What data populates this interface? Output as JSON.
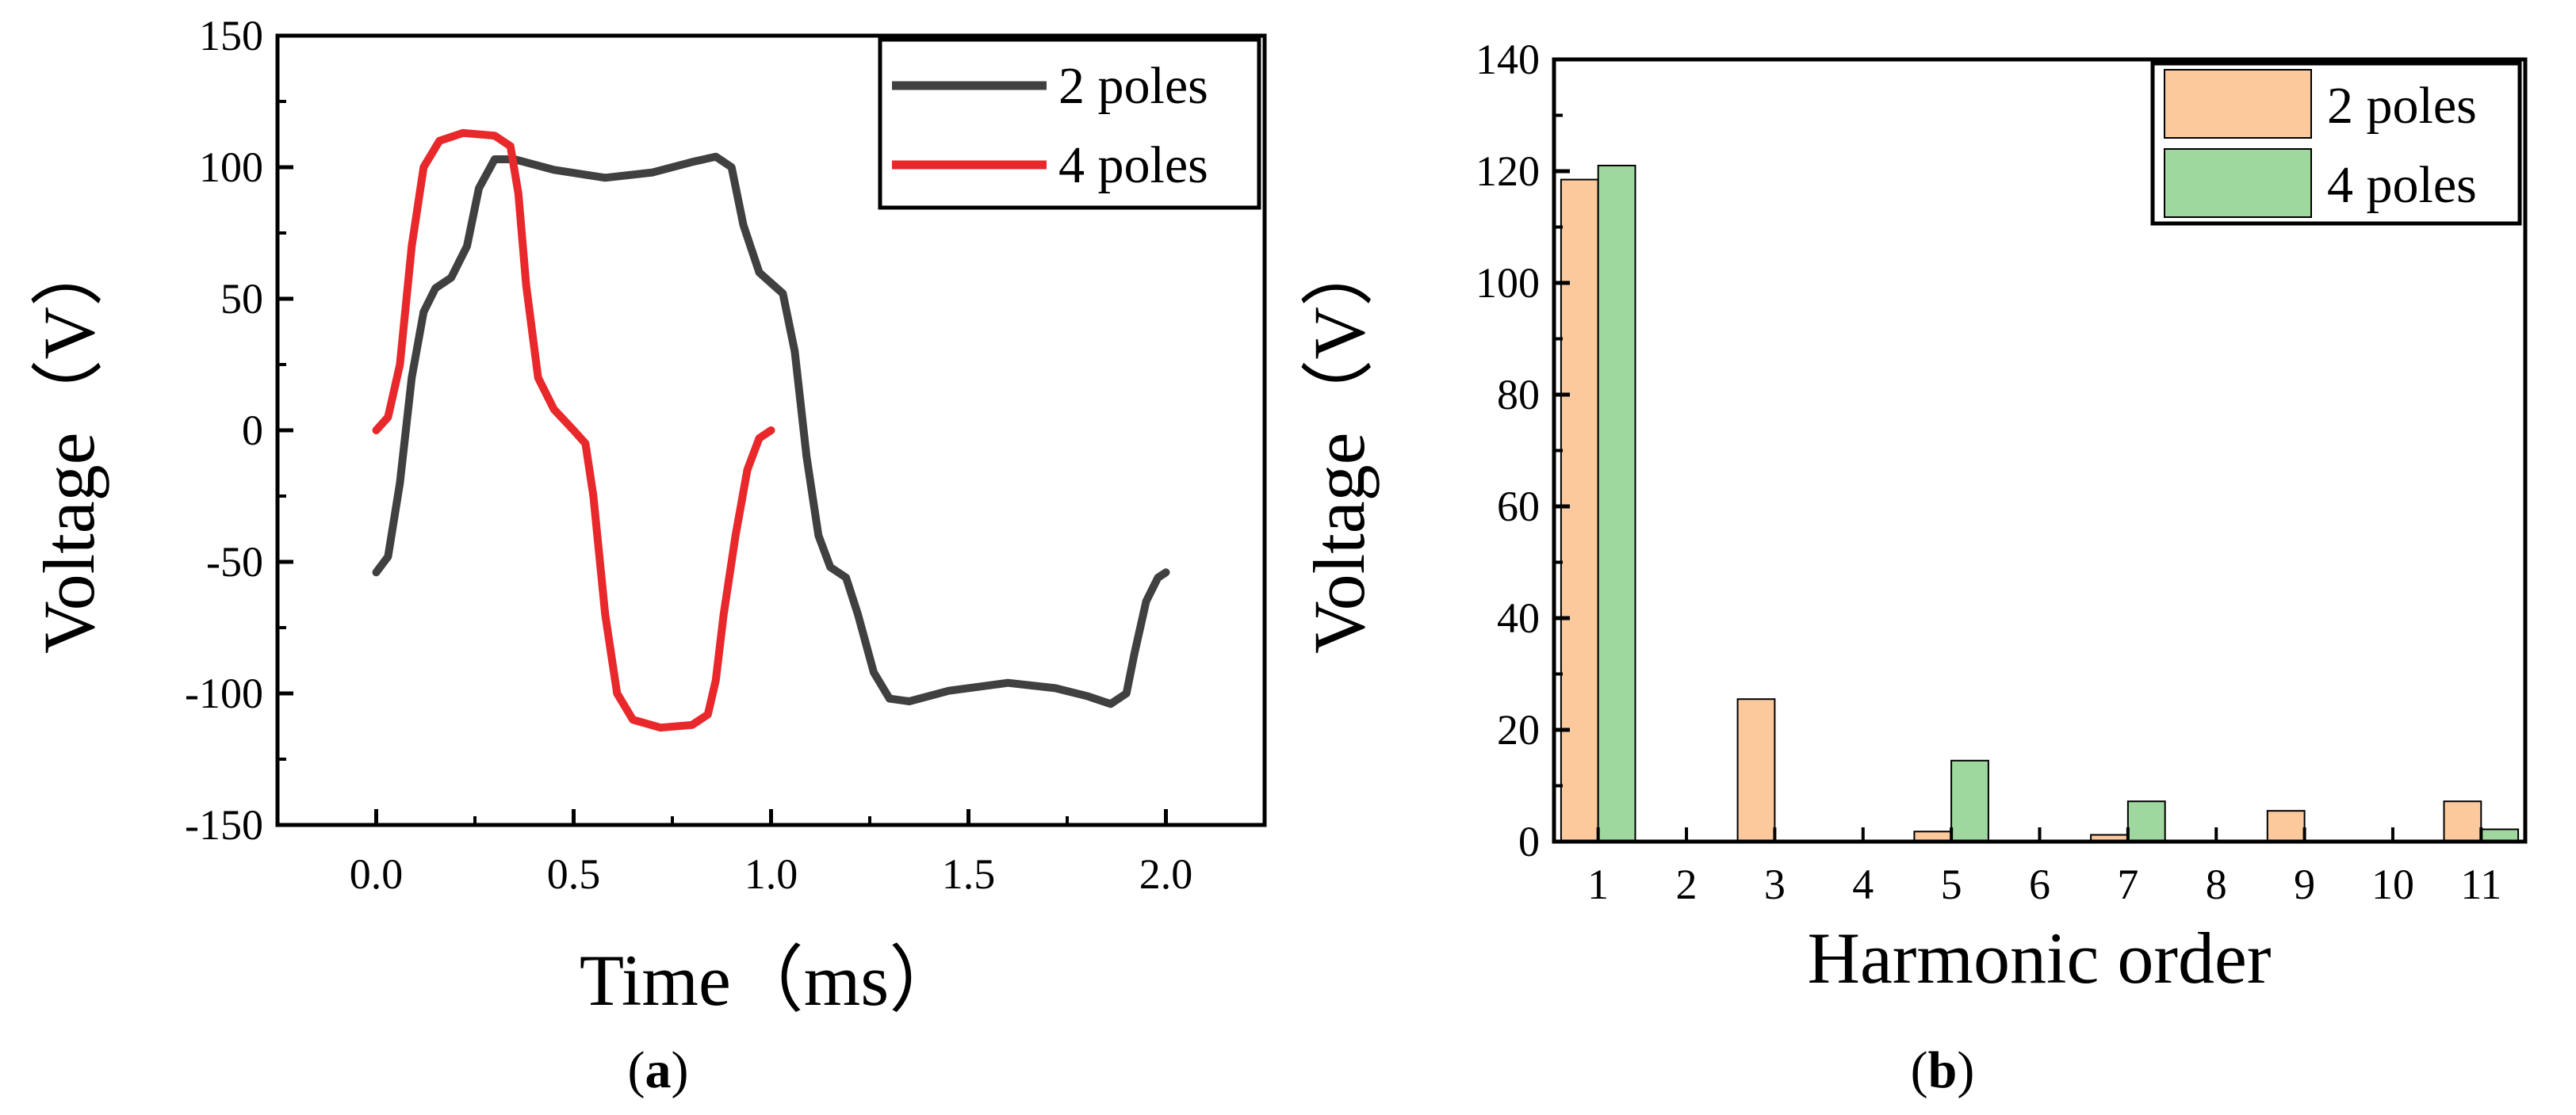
{
  "chart_data": [
    {
      "panel": "a",
      "type": "line",
      "panel_label_prefix": "(",
      "panel_label_letter": "a",
      "panel_label_suffix": ")",
      "xlabel": "Time（ms）",
      "ylabel": "Voltage（V）",
      "xlim": [
        -0.25,
        2.25
      ],
      "ylim": [
        -150,
        150
      ],
      "xticks": [
        "0.0",
        "0.5",
        "1.0",
        "1.5",
        "2.0"
      ],
      "xtick_values": [
        0,
        0.5,
        1.0,
        1.5,
        2.0
      ],
      "yticks": [
        "150",
        "100",
        "50",
        "0",
        "-50",
        "-100",
        "-150"
      ],
      "ytick_values": [
        150,
        100,
        50,
        0,
        -50,
        -100,
        -150
      ],
      "legend_position": "top-right",
      "series": [
        {
          "name": "2 poles",
          "color": "#404040",
          "points": [
            [
              0,
              -54
            ],
            [
              0.03,
              -48
            ],
            [
              0.06,
              -20
            ],
            [
              0.09,
              20
            ],
            [
              0.12,
              45
            ],
            [
              0.15,
              54
            ],
            [
              0.19,
              58
            ],
            [
              0.23,
              70
            ],
            [
              0.26,
              92
            ],
            [
              0.3,
              103
            ],
            [
              0.35,
              103
            ],
            [
              0.45,
              99
            ],
            [
              0.58,
              96
            ],
            [
              0.7,
              98
            ],
            [
              0.8,
              102
            ],
            [
              0.86,
              104
            ],
            [
              0.9,
              100
            ],
            [
              0.93,
              78
            ],
            [
              0.97,
              60
            ],
            [
              1.0,
              56
            ],
            [
              1.03,
              52
            ],
            [
              1.06,
              30
            ],
            [
              1.09,
              -10
            ],
            [
              1.12,
              -40
            ],
            [
              1.15,
              -52
            ],
            [
              1.19,
              -56
            ],
            [
              1.22,
              -70
            ],
            [
              1.26,
              -92
            ],
            [
              1.3,
              -102
            ],
            [
              1.35,
              -103
            ],
            [
              1.45,
              -99
            ],
            [
              1.6,
              -96
            ],
            [
              1.72,
              -98
            ],
            [
              1.8,
              -101
            ],
            [
              1.86,
              -104
            ],
            [
              1.9,
              -100
            ],
            [
              1.92,
              -85
            ],
            [
              1.95,
              -65
            ],
            [
              1.98,
              -56
            ],
            [
              2.0,
              -54
            ]
          ]
        },
        {
          "name": "4 poles",
          "color": "#e8282b",
          "points": [
            [
              0,
              0
            ],
            [
              0.03,
              5
            ],
            [
              0.06,
              25
            ],
            [
              0.09,
              70
            ],
            [
              0.12,
              100
            ],
            [
              0.16,
              110
            ],
            [
              0.22,
              113
            ],
            [
              0.3,
              112
            ],
            [
              0.34,
              108
            ],
            [
              0.36,
              90
            ],
            [
              0.38,
              55
            ],
            [
              0.41,
              20
            ],
            [
              0.45,
              8
            ],
            [
              0.5,
              0
            ],
            [
              0.53,
              -5
            ],
            [
              0.55,
              -25
            ],
            [
              0.58,
              -70
            ],
            [
              0.61,
              -100
            ],
            [
              0.65,
              -110
            ],
            [
              0.72,
              -113
            ],
            [
              0.8,
              -112
            ],
            [
              0.84,
              -108
            ],
            [
              0.86,
              -95
            ],
            [
              0.88,
              -70
            ],
            [
              0.91,
              -40
            ],
            [
              0.94,
              -15
            ],
            [
              0.97,
              -3
            ],
            [
              1.0,
              0
            ]
          ]
        }
      ]
    },
    {
      "panel": "b",
      "type": "bar",
      "panel_label_prefix": "(",
      "panel_label_letter": "b",
      "panel_label_suffix": ")",
      "xlabel": "Harmonic order",
      "ylabel": "Voltage（V）",
      "ylim": [
        0,
        140
      ],
      "categories": [
        "1",
        "2",
        "3",
        "4",
        "5",
        "6",
        "7",
        "8",
        "9",
        "10",
        "11"
      ],
      "yticks": [
        "140",
        "120",
        "100",
        "80",
        "60",
        "40",
        "20",
        "0"
      ],
      "ytick_values": [
        140,
        120,
        100,
        80,
        60,
        40,
        20,
        0
      ],
      "legend_position": "top-right",
      "series": [
        {
          "name": "2 poles",
          "color": "#fcc99d",
          "values": [
            118.5,
            0,
            25.5,
            0,
            1.8,
            0,
            1.2,
            0,
            5.5,
            0,
            7.2
          ]
        },
        {
          "name": "4 poles",
          "color": "#9ed89e",
          "values": [
            121,
            0,
            0,
            0,
            14.5,
            0,
            7.2,
            0,
            0,
            0,
            2.2
          ]
        }
      ]
    }
  ]
}
